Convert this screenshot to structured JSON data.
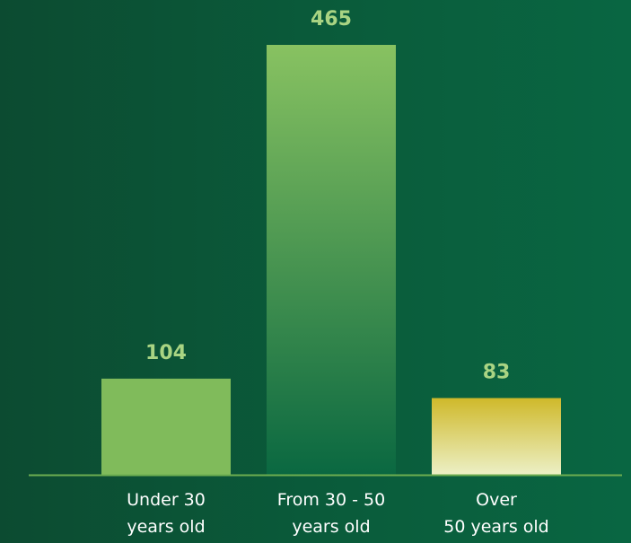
{
  "chart_data": {
    "type": "bar",
    "categories": [
      "Under 30\nyears old",
      "From 30 - 50\nyears old",
      "Over\n50 years old"
    ],
    "values": [
      104,
      465,
      83
    ],
    "colors": [
      [
        "#80bb5b",
        "#80bb5b"
      ],
      [
        "#88c261",
        "#0a6841"
      ],
      [
        "#cfb92a",
        "#ecf0c6"
      ]
    ],
    "label_color": "#a9d483",
    "axis_color": "#6cad50"
  }
}
